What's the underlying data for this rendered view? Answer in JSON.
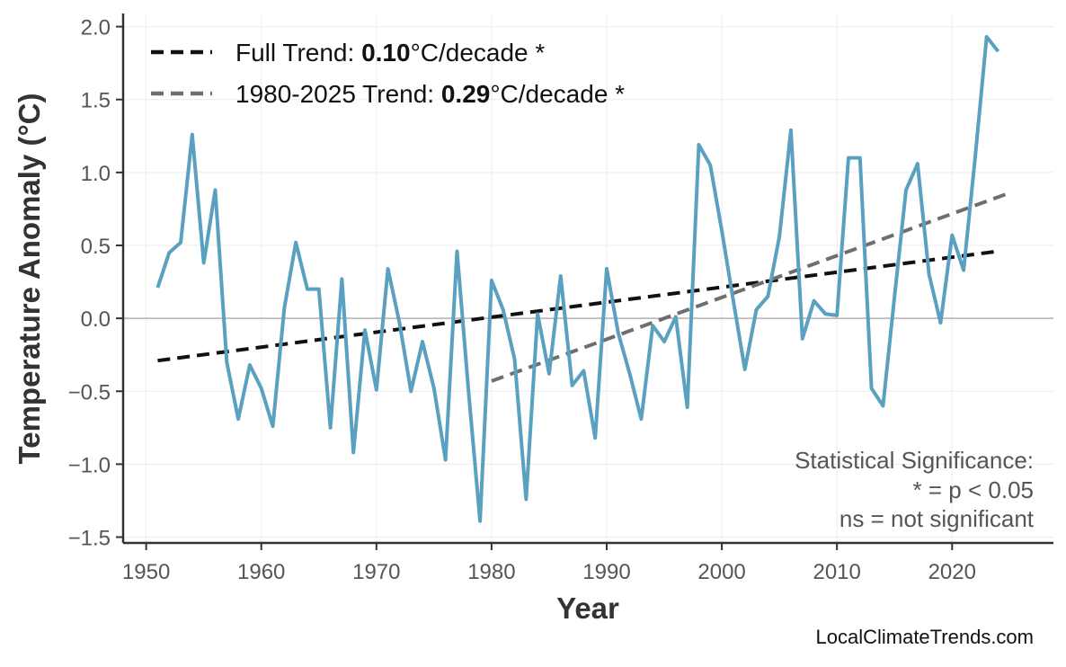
{
  "chart_data": {
    "type": "line",
    "title": "",
    "xlabel": "Year",
    "ylabel": "Temperature Anomaly (°C)",
    "xlim": [
      1948,
      2028.8
    ],
    "ylim": [
      -1.54,
      2.09
    ],
    "grid": true,
    "xticks": [
      1950,
      1960,
      1970,
      1980,
      1990,
      2000,
      2010,
      2020
    ],
    "yticks": [
      -1.5,
      -1.0,
      -0.5,
      0.0,
      0.5,
      1.0,
      1.5,
      2.0
    ],
    "ytick_labels": [
      "−1.5",
      "−1.0",
      "−0.5",
      "0.0",
      "0.5",
      "1.0",
      "1.5",
      "2.0"
    ],
    "series": [
      {
        "color": "#5aa0c0",
        "x": [
          1951,
          1952,
          1953,
          1954,
          1955,
          1956,
          1957,
          1958,
          1959,
          1960,
          1961,
          1962,
          1963,
          1964,
          1965,
          1966,
          1967,
          1968,
          1969,
          1970,
          1971,
          1972,
          1973,
          1974,
          1975,
          1976,
          1977,
          1978,
          1979,
          1980,
          1981,
          1982,
          1983,
          1984,
          1985,
          1986,
          1987,
          1988,
          1989,
          1990,
          1991,
          1992,
          1993,
          1994,
          1995,
          1996,
          1997,
          1998,
          1999,
          2000,
          2001,
          2002,
          2003,
          2004,
          2005,
          2006,
          2007,
          2008,
          2009,
          2010,
          2011,
          2012,
          2013,
          2014,
          2015,
          2016,
          2017,
          2018,
          2019,
          2020,
          2021,
          2022,
          2023,
          2024
        ],
        "y": [
          0.21,
          0.45,
          0.52,
          1.26,
          0.38,
          0.88,
          -0.3,
          -0.69,
          -0.32,
          -0.48,
          -0.74,
          0.07,
          0.52,
          0.2,
          0.2,
          -0.75,
          0.27,
          -0.92,
          -0.08,
          -0.49,
          0.34,
          -0.03,
          -0.5,
          -0.16,
          -0.48,
          -0.97,
          0.46,
          -0.5,
          -1.39,
          0.26,
          0.06,
          -0.28,
          -1.24,
          0.03,
          -0.38,
          0.29,
          -0.46,
          -0.36,
          -0.82,
          0.34,
          -0.1,
          -0.38,
          -0.69,
          -0.05,
          -0.16,
          0.01,
          -0.61,
          1.19,
          1.05,
          0.6,
          0.12,
          -0.35,
          0.06,
          0.15,
          0.56,
          1.29,
          -0.14,
          0.12,
          0.03,
          0.02,
          1.1,
          1.1,
          -0.48,
          -0.6,
          0.15,
          0.88,
          1.06,
          0.3,
          -0.03,
          0.57,
          0.33,
          1.1,
          1.93,
          1.83
        ]
      }
    ],
    "trends": [
      {
        "label_prefix": "Full Trend: ",
        "value": "0.10",
        "label_suffix": "°C/decade *",
        "color": "#111111",
        "x": [
          1951,
          2024
        ],
        "y": [
          -0.29,
          0.46
        ]
      },
      {
        "label_prefix": "1980-2025 Trend: ",
        "value": "0.29",
        "label_suffix": "°C/decade *",
        "color": "#6e6e6e",
        "x": [
          1980,
          2025
        ],
        "y": [
          -0.43,
          0.86
        ]
      }
    ],
    "legend_position": "top-left",
    "annotation": [
      "Statistical Significance:",
      "* = p < 0.05",
      "ns = not significant"
    ],
    "credit": "LocalClimateTrends.com"
  }
}
